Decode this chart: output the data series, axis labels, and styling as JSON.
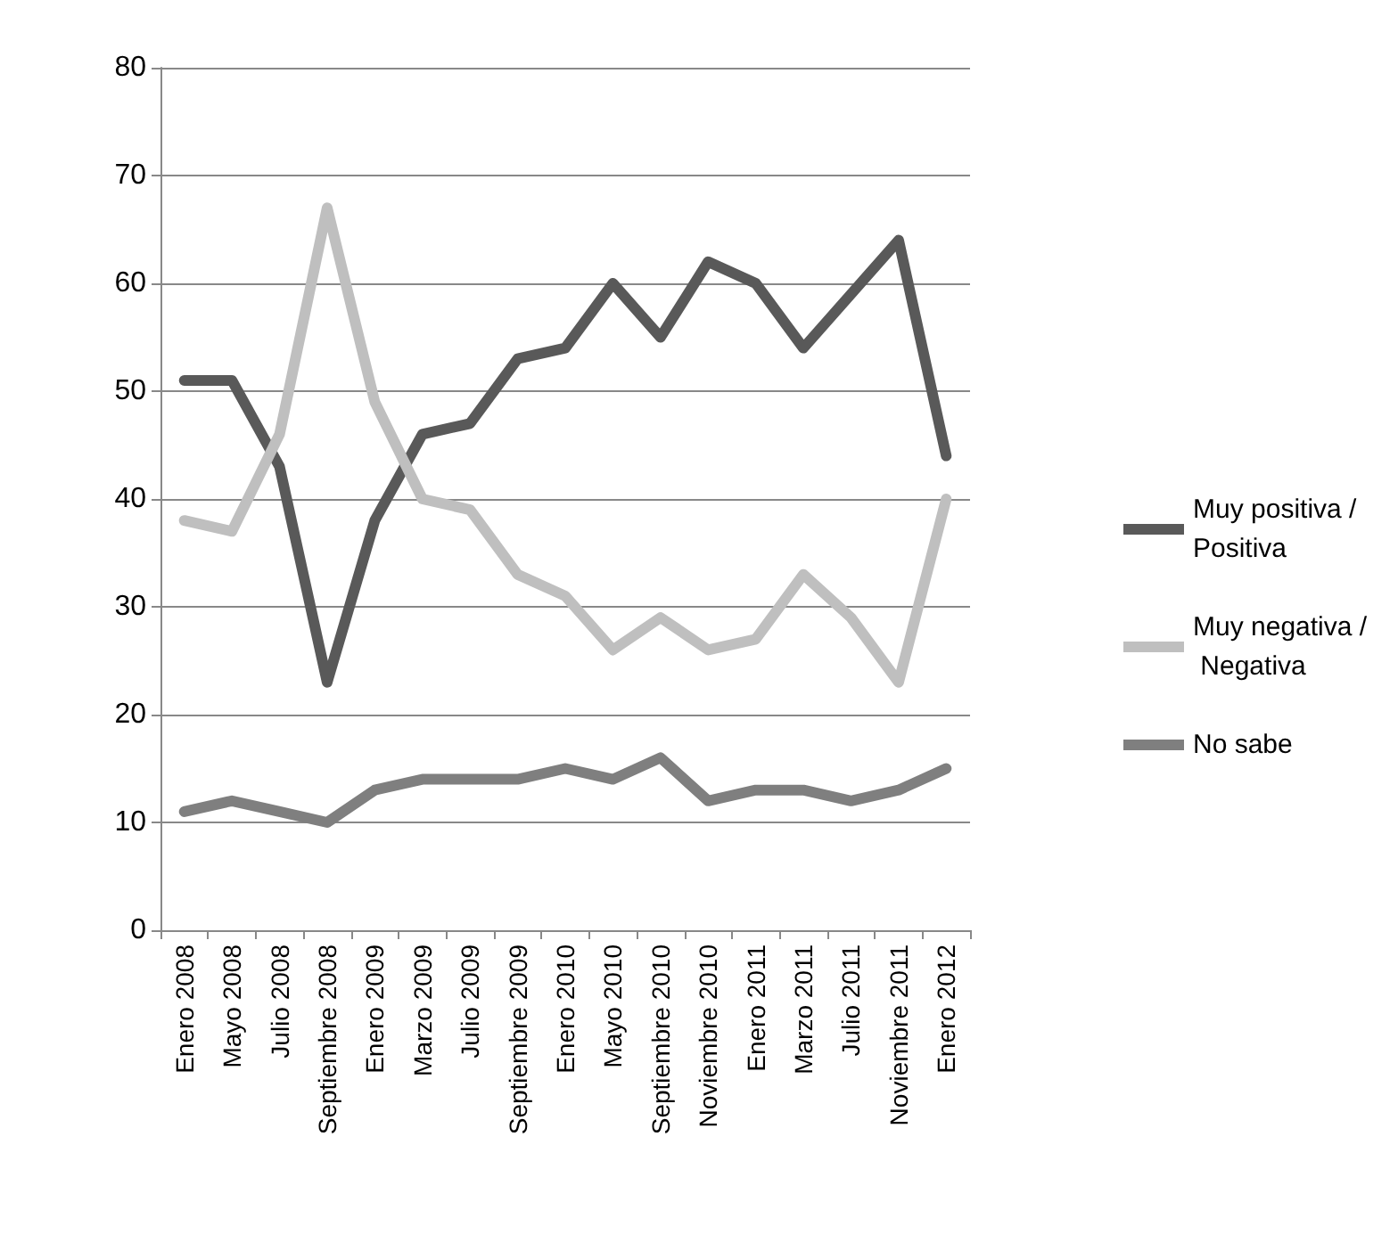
{
  "chart_data": {
    "type": "line",
    "categories": [
      "Enero 2008",
      "Mayo 2008",
      "Julio 2008",
      "Septiembre 2008",
      "Enero 2009",
      "Marzo 2009",
      "Julio 2009",
      "Septiembre 2009",
      "Enero 2010",
      "Mayo 2010",
      "Septiembre 2010",
      "Noviembre 2010",
      "Enero 2011",
      "Marzo 2011",
      "Julio 2011",
      "Noviembre 2011",
      "Enero 2012"
    ],
    "series": [
      {
        "name": "Muy positiva / Positiva",
        "color": "#595959",
        "values": [
          51,
          51,
          43,
          23,
          38,
          46,
          47,
          53,
          54,
          60,
          55,
          62,
          60,
          54,
          59,
          64,
          44
        ]
      },
      {
        "name": "Muy negativa / Negativa",
        "color": "#bfbfbf",
        "values": [
          38,
          37,
          46,
          67,
          49,
          40,
          39,
          33,
          31,
          26,
          29,
          26,
          27,
          33,
          29,
          23,
          40
        ]
      },
      {
        "name": "No sabe",
        "color": "#7f7f7f",
        "values": [
          11,
          12,
          11,
          10,
          13,
          14,
          14,
          14,
          15,
          14,
          16,
          12,
          13,
          13,
          12,
          13,
          15
        ]
      }
    ],
    "ylim": [
      0,
      80
    ],
    "yticks": [
      0,
      10,
      20,
      30,
      40,
      50,
      60,
      70,
      80
    ],
    "grid": "y",
    "legend": "right",
    "marker": "none",
    "line_style": "solid"
  }
}
